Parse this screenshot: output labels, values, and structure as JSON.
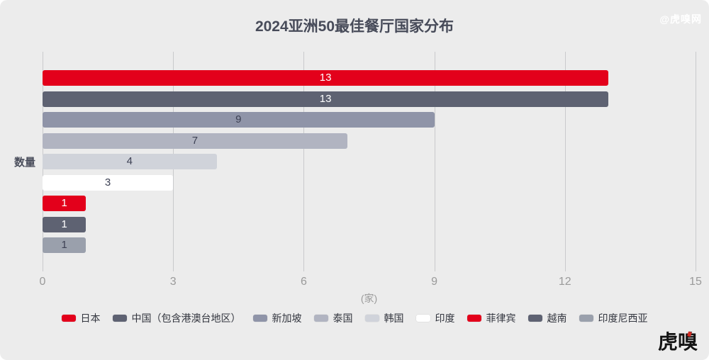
{
  "title": "2024亚洲50最佳餐厅国家分布",
  "watermark": "@虎嗅网",
  "logo": "虎嗅",
  "chart_data": {
    "type": "bar",
    "orientation": "horizontal",
    "title": "2024亚洲50最佳餐厅国家分布",
    "ylabel": "数量",
    "xlabel": "(家)",
    "xlim": [
      0,
      15
    ],
    "xticks": [
      0,
      3,
      6,
      9,
      12,
      15
    ],
    "grid": true,
    "legend_position": "bottom",
    "categories": [
      "日本",
      "中国（包含港澳台地区）",
      "新加坡",
      "泰国",
      "韩国",
      "印度",
      "菲律宾",
      "越南",
      "印度尼西亚"
    ],
    "values": [
      13,
      13,
      9,
      7,
      4,
      3,
      1,
      1,
      1
    ],
    "bar_colors": [
      "#e3001b",
      "#5e6272",
      "#8f94a8",
      "#b1b4c1",
      "#d0d3da",
      "#ffffff",
      "#e3001b",
      "#5e6272",
      "#9aa0ac"
    ],
    "value_label_colors": [
      "#ffffff",
      "#ffffff",
      "#3d4154",
      "#3d4154",
      "#3d4154",
      "#3d4154",
      "#ffffff",
      "#ffffff",
      "#3d4154"
    ]
  }
}
